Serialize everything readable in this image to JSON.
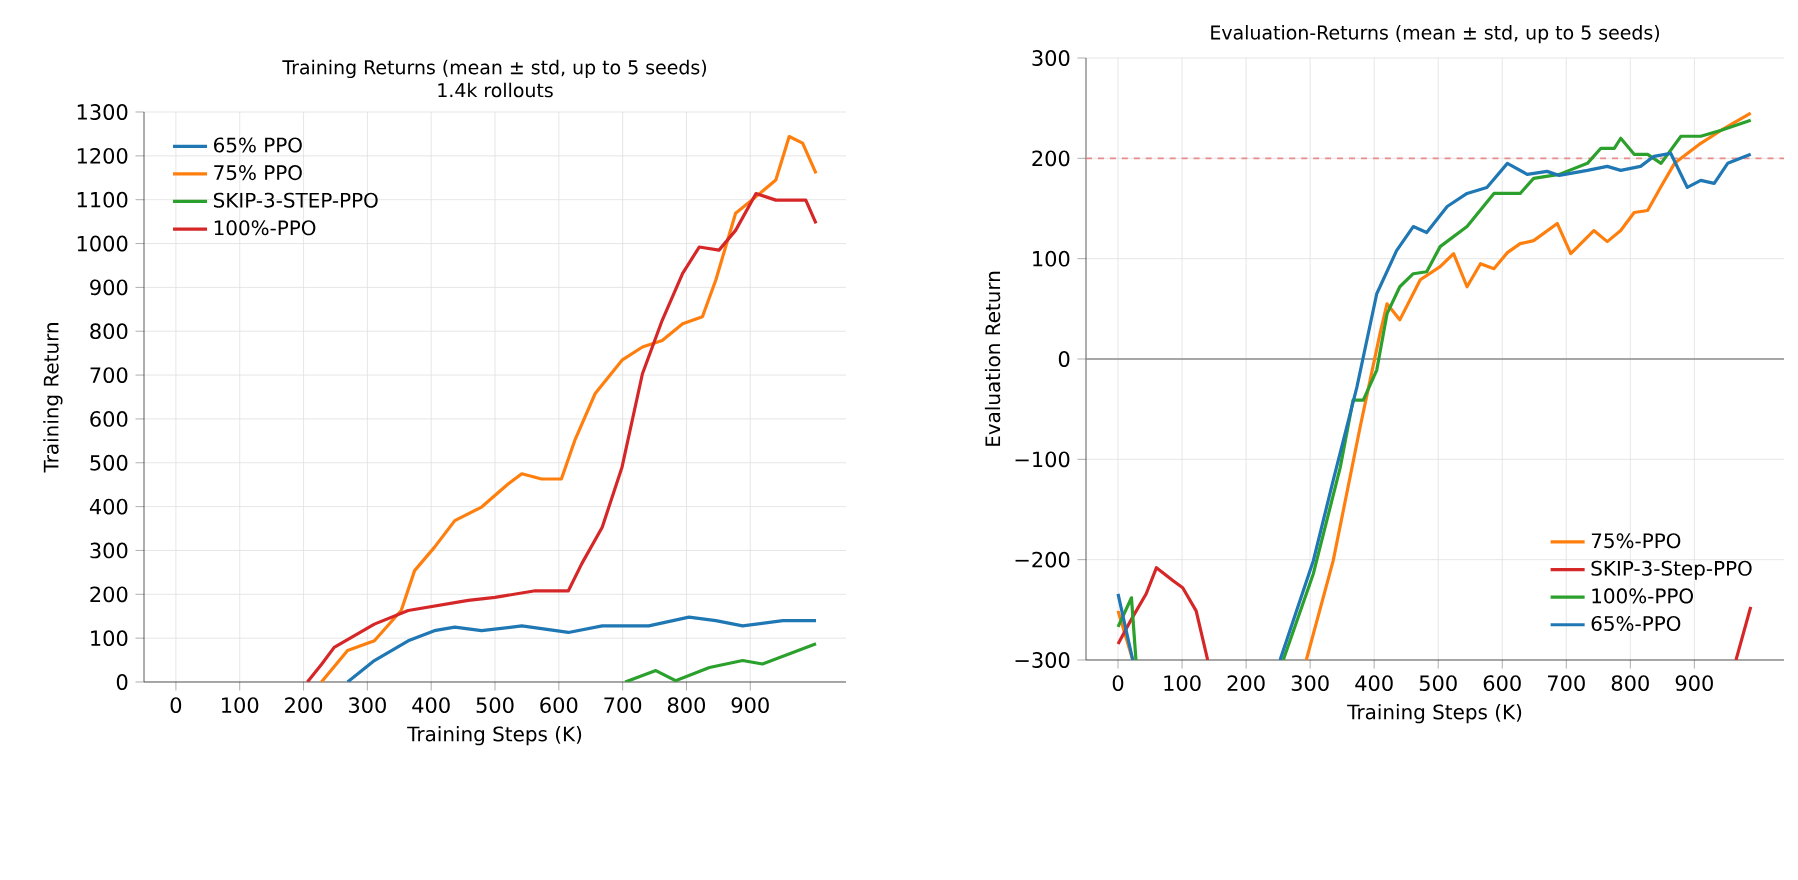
{
  "chart_data": [
    {
      "type": "line",
      "title": "Training Returns  (mean ± std, up to 5 seeds)",
      "subtitle": "1.4k rollouts",
      "xlabel": "Training Steps (K)",
      "ylabel": "Training Return",
      "xlim": [
        -50,
        1050
      ],
      "ylim": [
        0,
        1300
      ],
      "xticks": [
        0,
        100,
        200,
        300,
        400,
        500,
        600,
        700,
        800,
        900
      ],
      "yticks": [
        0,
        100,
        200,
        300,
        400,
        500,
        600,
        700,
        800,
        900,
        1000,
        1100,
        1200,
        1300
      ],
      "grid": true,
      "legend": "top left",
      "series": [
        {
          "name": "65% PPO",
          "color": "#1f77b4",
          "x": [
            269,
            311,
            364,
            405,
            437,
            479,
            542,
            615,
            668,
            741,
            804,
            846,
            888,
            951,
            1003
          ],
          "values": [
            0,
            49,
            94,
            117,
            125,
            117,
            128,
            113,
            128,
            128,
            148,
            140,
            128,
            140,
            140
          ]
        },
        {
          "name": "75% PPO",
          "color": "#ff7f0e",
          "x": [
            228,
            269,
            311,
            353,
            374,
            405,
            437,
            479,
            521,
            542,
            573,
            604,
            625,
            657,
            699,
            731,
            762,
            794,
            825,
            846,
            877,
            909,
            940,
            961,
            982,
            1003
          ],
          "values": [
            0,
            72,
            94,
            163,
            254,
            307,
            368,
            399,
            452,
            475,
            463,
            463,
            551,
            658,
            734,
            764,
            779,
            817,
            833,
            917,
            1069,
            1107,
            1145,
            1244,
            1229,
            1160
          ]
        },
        {
          "name": "SKIP-3-STEP-PPO",
          "color": "#2ca02c",
          "x": [
            704,
            752,
            783,
            836,
            888,
            919,
            961,
            1003
          ],
          "values": [
            0,
            26,
            3,
            33,
            49,
            41,
            64,
            87
          ]
        },
        {
          "name": "100%-PPO",
          "color": "#d62728",
          "x": [
            206,
            228,
            248,
            311,
            364,
            458,
            500,
            563,
            615,
            636,
            668,
            699,
            731,
            762,
            794,
            820,
            851,
            877,
            909,
            940,
            971,
            987,
            1003
          ],
          "values": [
            0,
            40,
            79,
            132,
            163,
            186,
            193,
            208,
            208,
            270,
            353,
            490,
            703,
            825,
            932,
            992,
            985,
            1030,
            1114,
            1099,
            1099,
            1099,
            1046
          ]
        }
      ]
    },
    {
      "type": "line",
      "title": "Evaluation-Returns  (mean ± std, up to 5 seeds)",
      "xlabel": "Training Steps (K)",
      "ylabel": "Evaluation Return",
      "xlim": [
        -50,
        1040
      ],
      "ylim": [
        -300,
        300
      ],
      "xticks": [
        0,
        100,
        200,
        300,
        400,
        500,
        600,
        700,
        800,
        900
      ],
      "yticks": [
        {
          "value": -300,
          "label": "−300"
        },
        {
          "value": -200,
          "label": "−200"
        },
        {
          "value": -100,
          "label": "−100"
        },
        0,
        100,
        200,
        300
      ],
      "grid": true,
      "legend": "bottom right",
      "ref_lines": [
        {
          "axis": "y",
          "value": 200,
          "color": "#e88b8c",
          "line_style": "dashed"
        },
        {
          "axis": "y",
          "value": 0,
          "color": "#8c8c8c",
          "line_style": "solid"
        }
      ],
      "series": [
        {
          "name": "75%-PPO",
          "color": "#ff7f0e",
          "x": [
            0,
            23,
            150,
            294,
            336,
            378,
            409,
            420,
            440,
            472,
            503,
            524,
            545,
            566,
            587,
            608,
            628,
            649,
            686,
            707,
            743,
            764,
            785,
            806,
            827,
            848,
            869,
            910,
            942,
            988
          ],
          "values": [
            -251,
            -300,
            null,
            -300,
            -201,
            -68,
            25,
            55,
            39,
            79,
            92,
            105,
            72,
            95,
            90,
            106,
            115,
            118,
            135,
            105,
            128,
            117,
            128,
            146,
            148,
            172,
            195,
            215,
            228,
            245
          ]
        },
        {
          "name": "SKIP-3-Step-PPO",
          "color": "#d62728",
          "x": [
            0,
            23,
            44,
            60,
            86,
            101,
            122,
            140,
            500,
            965,
            988
          ],
          "values": [
            -284,
            -257,
            -234,
            -208,
            -221,
            -228,
            -251,
            -300,
            null,
            -300,
            -247
          ]
        },
        {
          "name": "100%-PPO",
          "color": "#2ca02c",
          "x": [
            0,
            21,
            28,
            150,
            258,
            305,
            347,
            367,
            383,
            404,
            420,
            440,
            461,
            482,
            503,
            545,
            587,
            628,
            649,
            689,
            733,
            754,
            775,
            785,
            806,
            827,
            848,
            879,
            910,
            942,
            988
          ],
          "values": [
            -267,
            -238,
            -300,
            null,
            -300,
            -214,
            -108,
            -41,
            -41,
            -11,
            45,
            72,
            85,
            87,
            112,
            132,
            165,
            165,
            180,
            184,
            195,
            210,
            210,
            220,
            204,
            204,
            195,
            222,
            222,
            228,
            238
          ]
        },
        {
          "name": "65%-PPO",
          "color": "#1f77b4",
          "x": [
            0,
            23,
            150,
            253,
            305,
            336,
            373,
            404,
            435,
            461,
            482,
            514,
            545,
            576,
            608,
            639,
            670,
            689,
            733,
            764,
            785,
            816,
            837,
            863,
            889,
            910,
            931,
            952,
            988
          ],
          "values": [
            -234,
            -300,
            null,
            -300,
            -201,
            -121,
            -28,
            65,
            108,
            132,
            126,
            152,
            165,
            171,
            195,
            184,
            187,
            183,
            188,
            192,
            188,
            192,
            202,
            205,
            171,
            178,
            175,
            195,
            204
          ]
        }
      ]
    }
  ]
}
